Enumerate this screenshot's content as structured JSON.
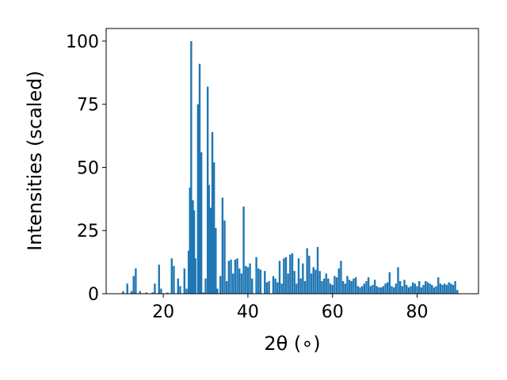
{
  "chart_data": {
    "type": "bar",
    "xlabel": "2θ (∘)",
    "ylabel": "Intensities (scaled)",
    "xlim": [
      6.5,
      94.5
    ],
    "ylim": [
      0,
      105
    ],
    "xticks": [
      20,
      40,
      60,
      80
    ],
    "yticks": [
      0,
      25,
      50,
      75,
      100
    ],
    "grid": false,
    "bar_color": "#1f77b4",
    "bar_width": 0.45,
    "x": [
      10.5,
      11.5,
      12.5,
      13.0,
      13.5,
      14.5,
      16.0,
      17.5,
      18.0,
      19.0,
      19.5,
      21.0,
      22.0,
      22.5,
      23.5,
      24.0,
      25.0,
      25.5,
      26.0,
      26.3,
      26.6,
      27.0,
      27.3,
      27.6,
      28.2,
      28.6,
      29.0,
      29.5,
      30.0,
      30.5,
      30.8,
      31.2,
      31.6,
      32.0,
      32.4,
      32.8,
      33.5,
      34.0,
      34.5,
      35.0,
      35.5,
      36.0,
      36.5,
      37.0,
      37.5,
      38.0,
      38.5,
      39.0,
      39.5,
      40.0,
      40.5,
      41.0,
      42.0,
      42.5,
      43.0,
      44.0,
      44.5,
      45.0,
      46.0,
      46.5,
      47.0,
      47.5,
      48.0,
      48.5,
      49.0,
      49.5,
      50.0,
      50.5,
      51.0,
      51.5,
      52.0,
      52.5,
      53.0,
      53.5,
      54.0,
      54.5,
      55.0,
      55.5,
      56.0,
      56.5,
      57.0,
      57.5,
      58.0,
      58.5,
      59.0,
      59.5,
      60.0,
      60.5,
      61.0,
      61.5,
      62.0,
      62.5,
      63.0,
      63.5,
      64.0,
      64.5,
      65.0,
      65.5,
      66.0,
      66.5,
      67.0,
      67.5,
      68.0,
      68.5,
      69.0,
      69.5,
      70.0,
      70.5,
      71.0,
      71.5,
      72.0,
      72.5,
      73.0,
      73.5,
      74.0,
      74.5,
      75.0,
      75.5,
      76.0,
      76.5,
      77.0,
      77.5,
      78.0,
      78.5,
      79.0,
      79.5,
      80.0,
      80.5,
      81.0,
      81.5,
      82.0,
      82.5,
      83.0,
      83.5,
      84.0,
      84.5,
      85.0,
      85.5,
      86.0,
      86.5,
      87.0,
      87.5,
      88.0,
      88.5,
      89.0,
      89.5
    ],
    "values": [
      1,
      4,
      1,
      7,
      10,
      1,
      0.5,
      0.5,
      4,
      11.5,
      2,
      0.5,
      14,
      11,
      6,
      3,
      10,
      2,
      17,
      42,
      100,
      37,
      33,
      14,
      75,
      91,
      56,
      0.5,
      6,
      82,
      43,
      34,
      64,
      52,
      26,
      2,
      7,
      38,
      29,
      5,
      13,
      13.5,
      8,
      13.5,
      14,
      10,
      8,
      34.5,
      11,
      10.5,
      12,
      6,
      14.5,
      10,
      9.5,
      9,
      4.5,
      5,
      7,
      6,
      4.5,
      13,
      4,
      14,
      14.5,
      8,
      15.5,
      16,
      9,
      4,
      14,
      6,
      12,
      5,
      18,
      15,
      8,
      10.5,
      9.5,
      18.5,
      9,
      5,
      6,
      8,
      6,
      4,
      3.5,
      7,
      6.5,
      10,
      13,
      5,
      4,
      7,
      5.5,
      5,
      6,
      6.5,
      3,
      2.5,
      3,
      4,
      5,
      6.5,
      3,
      3.5,
      5.5,
      3,
      2.5,
      2.5,
      3,
      4,
      4.5,
      8.5,
      3,
      2.5,
      4,
      10.5,
      5,
      3,
      5.5,
      3.5,
      2.5,
      3,
      4.5,
      4,
      3,
      5,
      2.5,
      3.5,
      5,
      4.5,
      4,
      3.5,
      2.5,
      3,
      6.5,
      4,
      3.5,
      4,
      3.5,
      4.5,
      4,
      3.5,
      5,
      1.5
    ]
  }
}
